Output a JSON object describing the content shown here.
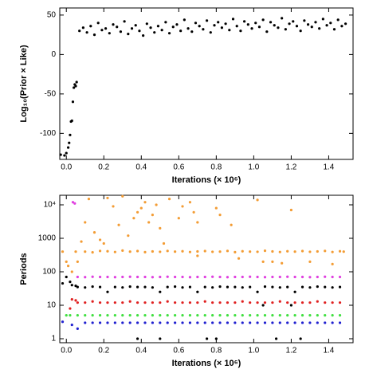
{
  "chart_data": [
    {
      "type": "scatter",
      "ylabel": "Log₁₀(Prior × Like)",
      "xlabel": "Iterations (× 10⁶)",
      "xlim": [
        -0.035,
        1.53
      ],
      "ylim": [
        -133,
        59
      ],
      "log_y": false,
      "xticks": [
        {
          "value": 0,
          "label": "0.0"
        },
        0.2,
        0.4,
        0.6,
        0.8,
        {
          "value": 1,
          "label": "1.0"
        },
        1.2,
        1.4
      ],
      "yticks": [
        -100,
        -50,
        0,
        50
      ],
      "series": [
        {
          "color": "#000000",
          "x": [
            -0.03,
            -0.01,
            0.0,
            0.01,
            0.015,
            0.02,
            0.025,
            0.03,
            0.035,
            0.04,
            0.045,
            0.05,
            0.055,
            0.07,
            0.09,
            0.11,
            0.13,
            0.15,
            0.17,
            0.19,
            0.21,
            0.23,
            0.25,
            0.27,
            0.29,
            0.31,
            0.33,
            0.35,
            0.37,
            0.39,
            0.41,
            0.43,
            0.45,
            0.47,
            0.49,
            0.51,
            0.53,
            0.55,
            0.57,
            0.59,
            0.61,
            0.63,
            0.65,
            0.67,
            0.69,
            0.71,
            0.73,
            0.75,
            0.77,
            0.79,
            0.81,
            0.83,
            0.85,
            0.87,
            0.89,
            0.91,
            0.93,
            0.95,
            0.97,
            0.99,
            1.01,
            1.03,
            1.05,
            1.07,
            1.09,
            1.11,
            1.13,
            1.15,
            1.17,
            1.19,
            1.21,
            1.23,
            1.25,
            1.27,
            1.29,
            1.31,
            1.33,
            1.35,
            1.37,
            1.39,
            1.41,
            1.43,
            1.45,
            1.47,
            1.49
          ],
          "values": [
            -127,
            -128,
            -125,
            -118,
            -112,
            -102,
            -85,
            -84,
            -60,
            -42,
            -38,
            -40,
            -35,
            30,
            34,
            28,
            36,
            25,
            40,
            31,
            33,
            27,
            38,
            35,
            29,
            42,
            26,
            33,
            37,
            30,
            24,
            39,
            34,
            28,
            36,
            31,
            41,
            27,
            35,
            38,
            30,
            44,
            33,
            29,
            40,
            36,
            32,
            43,
            28,
            37,
            41,
            34,
            39,
            31,
            45,
            36,
            30,
            42,
            38,
            33,
            40,
            35,
            44,
            29,
            41,
            37,
            34,
            46,
            32,
            39,
            42,
            36,
            30,
            43,
            38,
            35,
            41,
            33,
            45,
            37,
            40,
            32,
            44,
            36,
            39
          ]
        }
      ]
    },
    {
      "type": "scatter",
      "ylabel": "Periods",
      "xlabel": "Iterations (× 10⁶)",
      "xlim": [
        -0.035,
        1.53
      ],
      "ylim": [
        0.76,
        19300
      ],
      "log_y": true,
      "xticks": [
        {
          "value": 0,
          "label": "0.0"
        },
        0.2,
        0.4,
        0.6,
        0.8,
        {
          "value": 1,
          "label": "1.0"
        },
        1.2,
        1.4
      ],
      "yticks": [
        1,
        10,
        100,
        1000,
        {
          "value": 10000,
          "label": "10⁴"
        }
      ],
      "series": [
        {
          "color": "#f39c34",
          "x": [
            -0.02,
            0.0,
            0.01,
            0.03,
            0.05,
            0.06,
            0.08,
            0.1,
            0.12,
            0.15,
            0.18,
            0.2,
            0.22,
            0.25,
            0.28,
            0.3,
            0.33,
            0.36,
            0.38,
            0.4,
            0.42,
            0.44,
            0.46,
            0.48,
            0.5,
            0.52,
            0.55,
            0.6,
            0.62,
            0.66,
            0.68,
            0.7,
            0.8,
            0.82,
            0.88,
            1.02,
            1.2,
            0.1,
            0.14,
            0.18,
            0.22,
            0.26,
            0.3,
            0.34,
            0.38,
            0.42,
            0.46,
            0.5,
            0.54,
            0.58,
            0.62,
            0.66,
            0.7,
            0.74,
            0.78,
            0.82,
            0.86,
            0.9,
            0.94,
            0.98,
            1.02,
            1.06,
            1.1,
            1.14,
            1.18,
            1.22,
            1.26,
            1.3,
            1.34,
            1.38,
            1.42,
            1.46,
            1.48,
            0.7,
            0.92,
            1.05,
            1.1,
            1.15,
            1.3,
            1.42
          ],
          "values": [
            400,
            200,
            150,
            100,
            400,
            200,
            800,
            3000,
            15000,
            1500,
            900,
            700,
            16000,
            9000,
            2500,
            18000,
            1200,
            4000,
            6000,
            8000,
            12000,
            3000,
            5000,
            10000,
            2000,
            700,
            15000,
            4000,
            9000,
            12000,
            6000,
            3000,
            8000,
            5000,
            2500,
            14000,
            7000,
            400,
            380,
            420,
            410,
            390,
            430,
            400,
            415,
            385,
            405,
            395,
            420,
            400,
            410,
            390,
            405,
            415,
            395,
            400,
            420,
            385,
            410,
            400,
            395,
            425,
            405,
            390,
            410,
            400,
            415,
            395,
            405,
            420,
            390,
            410,
            400,
            300,
            250,
            200,
            200,
            180,
            200,
            170
          ]
        },
        {
          "color": "#e040e0",
          "x": [
            0.035,
            0.045,
            0.06,
            0.1,
            0.14,
            0.18,
            0.22,
            0.26,
            0.3,
            0.34,
            0.38,
            0.42,
            0.46,
            0.5,
            0.54,
            0.58,
            0.62,
            0.66,
            0.7,
            0.74,
            0.78,
            0.82,
            0.86,
            0.9,
            0.94,
            0.98,
            1.02,
            1.06,
            1.1,
            1.14,
            1.18,
            1.22,
            1.26,
            1.3,
            1.34,
            1.38,
            1.42,
            1.46
          ],
          "values": [
            12000,
            11000,
            70,
            69,
            71,
            70,
            70,
            69,
            70,
            71,
            70,
            70,
            69,
            70,
            71,
            70,
            70,
            69,
            70,
            70,
            71,
            70,
            69,
            70,
            70,
            71,
            70,
            69,
            70,
            70,
            71,
            70,
            70,
            69,
            70,
            71,
            70,
            70
          ]
        },
        {
          "color": "#000000",
          "x": [
            -0.02,
            0.0,
            0.02,
            0.03,
            0.05,
            0.06,
            0.1,
            0.14,
            0.18,
            0.22,
            0.26,
            0.3,
            0.34,
            0.38,
            0.42,
            0.46,
            0.5,
            0.54,
            0.58,
            0.62,
            0.66,
            0.7,
            0.74,
            0.78,
            0.82,
            0.86,
            0.9,
            0.94,
            0.98,
            1.02,
            1.06,
            1.1,
            1.14,
            1.18,
            1.22,
            1.26,
            1.3,
            1.34,
            1.38,
            1.42,
            1.46,
            0.38,
            0.5,
            0.75,
            0.8,
            1.12,
            1.25,
            1.05,
            1.2
          ],
          "values": [
            45,
            70,
            50,
            40,
            38,
            35,
            34,
            36,
            35,
            25,
            35,
            34,
            36,
            35,
            35,
            34,
            25,
            35,
            36,
            34,
            35,
            25,
            35,
            34,
            36,
            35,
            35,
            34,
            35,
            25,
            36,
            35,
            34,
            35,
            25,
            35,
            34,
            36,
            35,
            34,
            35,
            1,
            1,
            1,
            1,
            1,
            1,
            10,
            10
          ]
        },
        {
          "color": "#e02020",
          "x": [
            0.02,
            0.03,
            0.05,
            0.06,
            0.1,
            0.14,
            0.18,
            0.22,
            0.26,
            0.3,
            0.34,
            0.38,
            0.42,
            0.46,
            0.5,
            0.54,
            0.58,
            0.62,
            0.66,
            0.7,
            0.74,
            0.78,
            0.82,
            0.86,
            0.9,
            0.94,
            0.98,
            1.02,
            1.06,
            1.1,
            1.14,
            1.18,
            1.22,
            1.26,
            1.3,
            1.34,
            1.38,
            1.42,
            1.46
          ],
          "values": [
            8,
            15,
            14,
            12,
            12,
            13,
            12,
            12,
            12,
            12,
            13,
            12,
            12,
            12,
            12,
            13,
            12,
            12,
            12,
            12,
            13,
            12,
            12,
            12,
            12,
            13,
            12,
            12,
            12,
            12,
            13,
            12,
            12,
            12,
            12,
            13,
            12,
            12,
            12
          ]
        },
        {
          "color": "#40e040",
          "x": [
            0.0,
            0.02,
            0.06,
            0.1,
            0.14,
            0.18,
            0.22,
            0.26,
            0.3,
            0.34,
            0.38,
            0.42,
            0.46,
            0.5,
            0.54,
            0.58,
            0.62,
            0.66,
            0.7,
            0.74,
            0.78,
            0.82,
            0.86,
            0.9,
            0.94,
            0.98,
            1.02,
            1.06,
            1.1,
            1.14,
            1.18,
            1.22,
            1.26,
            1.3,
            1.34,
            1.38,
            1.42,
            1.46
          ],
          "values": [
            5,
            5,
            5,
            5,
            5,
            5,
            5,
            5,
            5,
            5,
            5,
            5,
            5,
            5,
            5,
            5,
            5,
            5,
            5,
            5,
            5,
            5,
            5,
            5,
            5,
            5,
            5,
            5,
            5,
            5,
            5,
            5,
            5,
            5,
            5,
            5,
            5,
            5
          ]
        },
        {
          "color": "#2020d0",
          "x": [
            -0.02,
            0.03,
            0.06,
            0.1,
            0.14,
            0.18,
            0.22,
            0.26,
            0.3,
            0.34,
            0.38,
            0.42,
            0.46,
            0.5,
            0.54,
            0.58,
            0.62,
            0.66,
            0.7,
            0.74,
            0.78,
            0.82,
            0.86,
            0.9,
            0.94,
            0.98,
            1.02,
            1.06,
            1.1,
            1.14,
            1.18,
            1.22,
            1.26,
            1.3,
            1.34,
            1.38,
            1.42,
            1.46
          ],
          "values": [
            3.2,
            2.6,
            2,
            3,
            3,
            3,
            3,
            3,
            3,
            3,
            3,
            3,
            3,
            3,
            3,
            3,
            3,
            3,
            3,
            3,
            3,
            3,
            3,
            3,
            3,
            3,
            3,
            3,
            3,
            3,
            3,
            3,
            3,
            3,
            3,
            3,
            3,
            3
          ]
        }
      ]
    }
  ]
}
